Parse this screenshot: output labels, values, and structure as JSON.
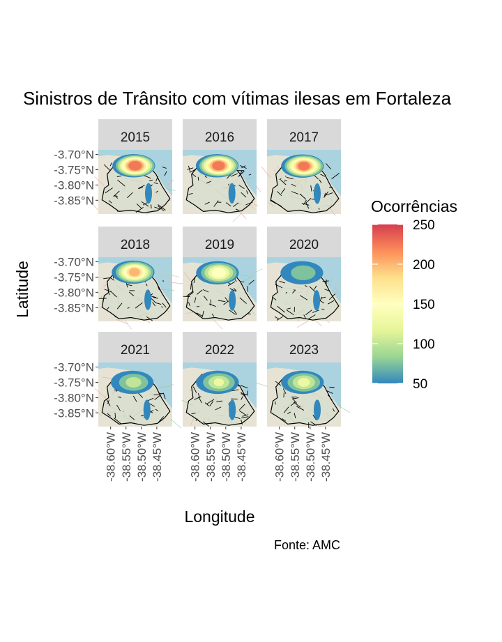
{
  "chart_data": {
    "type": "heatmap",
    "title": "Sinistros de Trânsito com vítimas ilesas em Fortaleza",
    "xlabel": "Longitude",
    "ylabel": "Latitude",
    "caption": "Fonte: AMC",
    "facets": [
      "2015",
      "2016",
      "2017",
      "2018",
      "2019",
      "2020",
      "2021",
      "2022",
      "2023"
    ],
    "y_ticks": [
      "-3.70°N",
      "-3.75°N",
      "-3.80°N",
      "-3.85°N"
    ],
    "x_ticks": [
      "-38.60°W",
      "-38.55°W",
      "-38.50°W",
      "-38.45°W"
    ],
    "xlim": [
      -38.64,
      -38.4
    ],
    "ylim": [
      -3.895,
      -3.685
    ],
    "legend": {
      "title": "Ocorrências",
      "position": "right",
      "min": 50,
      "max": 250,
      "breaks": [
        "250",
        "200",
        "150",
        "100",
        "50"
      ],
      "palette": [
        "#d53e4f",
        "#fc8d59",
        "#fee08b",
        "#ffffbf",
        "#e6f598",
        "#99d594",
        "#3288bd"
      ]
    },
    "density_peaks": [
      {
        "facet": "2015",
        "lon": -38.525,
        "lat": -3.737,
        "peak": 245
      },
      {
        "facet": "2016",
        "lon": -38.528,
        "lat": -3.737,
        "peak": 240
      },
      {
        "facet": "2017",
        "lon": -38.525,
        "lat": -3.738,
        "peak": 235
      },
      {
        "facet": "2018",
        "lon": -38.527,
        "lat": -3.734,
        "peak": 205
      },
      {
        "facet": "2019",
        "lon": -38.527,
        "lat": -3.736,
        "peak": 165
      },
      {
        "facet": "2020",
        "lon": -38.527,
        "lat": -3.736,
        "peak": 95
      },
      {
        "facet": "2021",
        "lon": -38.53,
        "lat": -3.75,
        "peak": 110
      },
      {
        "facet": "2022",
        "lon": -38.527,
        "lat": -3.75,
        "peak": 125
      },
      {
        "facet": "2023",
        "lon": -38.525,
        "lat": -3.75,
        "peak": 130
      }
    ],
    "grid": false
  }
}
